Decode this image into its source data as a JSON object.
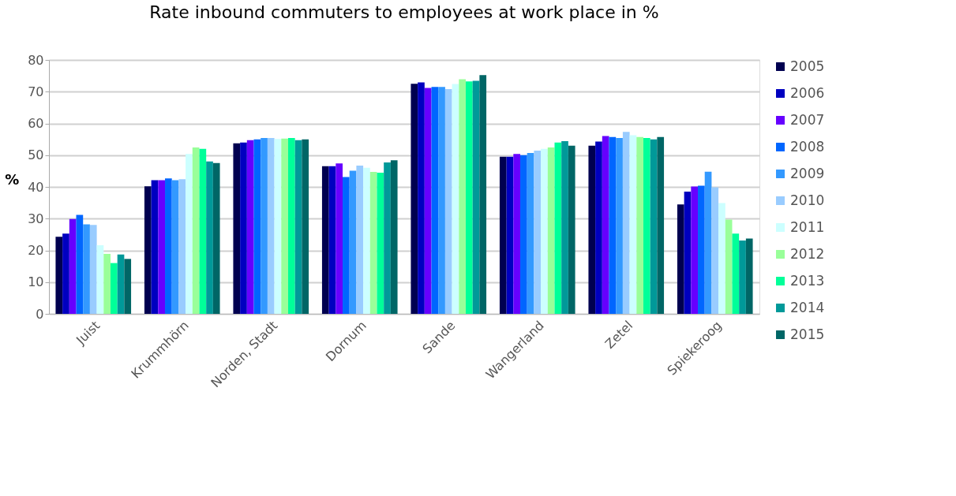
{
  "chart_data": {
    "type": "bar",
    "title": "Rate inbound commuters to employees at work place in %",
    "ylabel": "%",
    "categories": [
      "Juist",
      "Krummhörn",
      "Norden, Stadt",
      "Dornum",
      "Sande",
      "Wangerland",
      "Zetel",
      "Spiekeroog"
    ],
    "ylim": [
      0,
      80
    ],
    "yticks": [
      0,
      10,
      20,
      30,
      40,
      50,
      60,
      70,
      80
    ],
    "grid": "y",
    "legend": "right",
    "series": [
      {
        "name": "2005",
        "color": "#000050",
        "values": [
          24.3,
          40.2,
          53.7,
          46.5,
          72.5,
          49.5,
          53.0,
          34.5
        ]
      },
      {
        "name": "2006",
        "color": "#0000c0",
        "values": [
          25.3,
          42.1,
          54.0,
          46.5,
          72.9,
          49.5,
          54.3,
          38.5
        ]
      },
      {
        "name": "2007",
        "color": "#6600ff",
        "values": [
          29.9,
          42.1,
          54.7,
          47.4,
          71.2,
          50.4,
          56.0,
          40.1
        ]
      },
      {
        "name": "2008",
        "color": "#0066ff",
        "values": [
          31.2,
          42.7,
          55.0,
          43.1,
          71.5,
          50.0,
          55.7,
          40.4
        ]
      },
      {
        "name": "2009",
        "color": "#3399ff",
        "values": [
          28.2,
          42.1,
          55.4,
          45.1,
          71.5,
          50.7,
          55.4,
          44.8
        ]
      },
      {
        "name": "2010",
        "color": "#99ccff",
        "values": [
          28.0,
          42.4,
          55.4,
          46.7,
          70.8,
          51.4,
          57.3,
          39.9
        ]
      },
      {
        "name": "2011",
        "color": "#ccffff",
        "values": [
          21.6,
          50.4,
          55.1,
          46.0,
          72.4,
          52.0,
          56.3,
          34.9
        ]
      },
      {
        "name": "2012",
        "color": "#99ff99",
        "values": [
          18.9,
          52.4,
          55.2,
          44.7,
          73.9,
          52.4,
          55.7,
          29.7
        ]
      },
      {
        "name": "2013",
        "color": "#00ff99",
        "values": [
          16.0,
          52.0,
          55.4,
          44.5,
          73.2,
          54.0,
          55.4,
          25.3
        ]
      },
      {
        "name": "2014",
        "color": "#009999",
        "values": [
          18.7,
          48.0,
          54.7,
          47.7,
          73.4,
          54.4,
          55.0,
          23.1
        ]
      },
      {
        "name": "2015",
        "color": "#006666",
        "values": [
          17.3,
          47.5,
          55.0,
          48.4,
          75.2,
          53.0,
          55.7,
          23.7
        ]
      }
    ]
  }
}
